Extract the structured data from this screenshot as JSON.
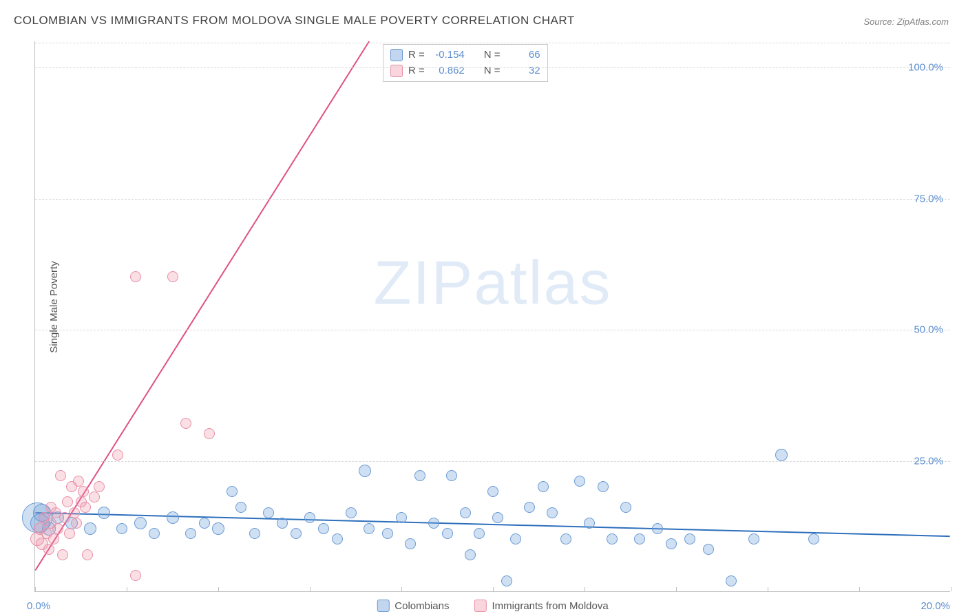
{
  "title": "COLOMBIAN VS IMMIGRANTS FROM MOLDOVA SINGLE MALE POVERTY CORRELATION CHART",
  "source": "Source: ZipAtlas.com",
  "ylabel": "Single Male Poverty",
  "watermark_a": "ZIP",
  "watermark_b": "atlas",
  "chart": {
    "type": "scatter",
    "background_color": "#ffffff",
    "grid_color": "#d8d8d8",
    "axis_color": "#c0c0c0",
    "tick_label_color": "#5b8ecf",
    "label_color": "#555555",
    "label_fontsize": 15,
    "tick_fontsize": 15,
    "title_fontsize": 17,
    "title_color": "#404040",
    "xlim": [
      0,
      20
    ],
    "ylim": [
      0,
      105
    ],
    "xticks": [
      0,
      2,
      4,
      6,
      8,
      10,
      12,
      14,
      16,
      18,
      20
    ],
    "xtick_labels": {
      "0": "0.0%",
      "20": "20.0%"
    },
    "yticks": [
      25,
      50,
      75,
      100
    ],
    "ytick_labels": [
      "25.0%",
      "50.0%",
      "75.0%",
      "100.0%"
    ],
    "point_base_radius": 8,
    "point_opacity": 0.35
  },
  "series": [
    {
      "name": "Colombians",
      "color_fill": "rgba(120,165,220,0.35)",
      "color_stroke": "#6a9ad4",
      "R": "-0.154",
      "N": "66",
      "trend": {
        "x1": 0,
        "y1": 15.0,
        "x2": 20,
        "y2": 10.5,
        "color": "#2d6fbc",
        "width": 2
      },
      "points": [
        {
          "x": 0.05,
          "y": 14,
          "r": 22
        },
        {
          "x": 0.1,
          "y": 13,
          "r": 14
        },
        {
          "x": 0.15,
          "y": 15,
          "r": 13
        },
        {
          "x": 0.3,
          "y": 12,
          "r": 10
        },
        {
          "x": 0.5,
          "y": 14,
          "r": 9
        },
        {
          "x": 0.8,
          "y": 13,
          "r": 9
        },
        {
          "x": 1.2,
          "y": 12,
          "r": 9
        },
        {
          "x": 1.5,
          "y": 15,
          "r": 9
        },
        {
          "x": 1.9,
          "y": 12,
          "r": 8
        },
        {
          "x": 2.3,
          "y": 13,
          "r": 9
        },
        {
          "x": 2.6,
          "y": 11,
          "r": 8
        },
        {
          "x": 3.0,
          "y": 14,
          "r": 9
        },
        {
          "x": 3.4,
          "y": 11,
          "r": 8
        },
        {
          "x": 3.7,
          "y": 13,
          "r": 8
        },
        {
          "x": 4.0,
          "y": 12,
          "r": 9
        },
        {
          "x": 4.3,
          "y": 19,
          "r": 8
        },
        {
          "x": 4.5,
          "y": 16,
          "r": 8
        },
        {
          "x": 4.8,
          "y": 11,
          "r": 8
        },
        {
          "x": 5.1,
          "y": 15,
          "r": 8
        },
        {
          "x": 5.4,
          "y": 13,
          "r": 8
        },
        {
          "x": 5.7,
          "y": 11,
          "r": 8
        },
        {
          "x": 6.0,
          "y": 14,
          "r": 8
        },
        {
          "x": 6.3,
          "y": 12,
          "r": 8
        },
        {
          "x": 6.6,
          "y": 10,
          "r": 8
        },
        {
          "x": 6.9,
          "y": 15,
          "r": 8
        },
        {
          "x": 7.2,
          "y": 23,
          "r": 9
        },
        {
          "x": 7.3,
          "y": 12,
          "r": 8
        },
        {
          "x": 7.7,
          "y": 11,
          "r": 8
        },
        {
          "x": 8.0,
          "y": 14,
          "r": 8
        },
        {
          "x": 8.2,
          "y": 9,
          "r": 8
        },
        {
          "x": 8.4,
          "y": 22,
          "r": 8
        },
        {
          "x": 8.7,
          "y": 13,
          "r": 8
        },
        {
          "x": 9.0,
          "y": 11,
          "r": 8
        },
        {
          "x": 9.1,
          "y": 22,
          "r": 8
        },
        {
          "x": 9.4,
          "y": 15,
          "r": 8
        },
        {
          "x": 9.5,
          "y": 7,
          "r": 8
        },
        {
          "x": 9.7,
          "y": 11,
          "r": 8
        },
        {
          "x": 10.0,
          "y": 19,
          "r": 8
        },
        {
          "x": 10.1,
          "y": 14,
          "r": 8
        },
        {
          "x": 10.3,
          "y": 2,
          "r": 8
        },
        {
          "x": 10.5,
          "y": 10,
          "r": 8
        },
        {
          "x": 10.8,
          "y": 16,
          "r": 8
        },
        {
          "x": 11.1,
          "y": 20,
          "r": 8
        },
        {
          "x": 11.3,
          "y": 15,
          "r": 8
        },
        {
          "x": 11.6,
          "y": 10,
          "r": 8
        },
        {
          "x": 11.9,
          "y": 21,
          "r": 8
        },
        {
          "x": 12.1,
          "y": 13,
          "r": 8
        },
        {
          "x": 12.4,
          "y": 20,
          "r": 8
        },
        {
          "x": 12.6,
          "y": 10,
          "r": 8
        },
        {
          "x": 12.9,
          "y": 16,
          "r": 8
        },
        {
          "x": 13.2,
          "y": 10,
          "r": 8
        },
        {
          "x": 13.6,
          "y": 12,
          "r": 8
        },
        {
          "x": 13.9,
          "y": 9,
          "r": 8
        },
        {
          "x": 14.3,
          "y": 10,
          "r": 8
        },
        {
          "x": 14.7,
          "y": 8,
          "r": 8
        },
        {
          "x": 15.2,
          "y": 2,
          "r": 8
        },
        {
          "x": 15.7,
          "y": 10,
          "r": 8
        },
        {
          "x": 16.3,
          "y": 26,
          "r": 9
        },
        {
          "x": 17.0,
          "y": 10,
          "r": 8
        }
      ]
    },
    {
      "name": "Immigrants from Moldova",
      "color_fill": "rgba(240,150,170,0.30)",
      "color_stroke": "#e890a8",
      "R": "0.862",
      "N": "32",
      "trend": {
        "x1": 0,
        "y1": 4,
        "x2": 7.3,
        "y2": 105,
        "color": "#e05085",
        "width": 2
      },
      "points": [
        {
          "x": 0.05,
          "y": 10,
          "r": 10
        },
        {
          "x": 0.1,
          "y": 12,
          "r": 9
        },
        {
          "x": 0.15,
          "y": 9,
          "r": 9
        },
        {
          "x": 0.2,
          "y": 14,
          "r": 8
        },
        {
          "x": 0.25,
          "y": 11,
          "r": 8
        },
        {
          "x": 0.3,
          "y": 8,
          "r": 8
        },
        {
          "x": 0.35,
          "y": 13,
          "r": 8
        },
        {
          "x": 0.35,
          "y": 16,
          "r": 8
        },
        {
          "x": 0.4,
          "y": 10,
          "r": 8
        },
        {
          "x": 0.45,
          "y": 15,
          "r": 8
        },
        {
          "x": 0.5,
          "y": 12,
          "r": 8
        },
        {
          "x": 0.55,
          "y": 22,
          "r": 8
        },
        {
          "x": 0.6,
          "y": 7,
          "r": 8
        },
        {
          "x": 0.65,
          "y": 14,
          "r": 8
        },
        {
          "x": 0.7,
          "y": 17,
          "r": 8
        },
        {
          "x": 0.75,
          "y": 11,
          "r": 8
        },
        {
          "x": 0.8,
          "y": 20,
          "r": 8
        },
        {
          "x": 0.85,
          "y": 15,
          "r": 8
        },
        {
          "x": 0.9,
          "y": 13,
          "r": 8
        },
        {
          "x": 0.95,
          "y": 21,
          "r": 8
        },
        {
          "x": 1.0,
          "y": 17,
          "r": 8
        },
        {
          "x": 1.05,
          "y": 19,
          "r": 8
        },
        {
          "x": 1.1,
          "y": 16,
          "r": 8
        },
        {
          "x": 1.15,
          "y": 7,
          "r": 8
        },
        {
          "x": 1.3,
          "y": 18,
          "r": 8
        },
        {
          "x": 1.4,
          "y": 20,
          "r": 8
        },
        {
          "x": 1.8,
          "y": 26,
          "r": 8
        },
        {
          "x": 2.2,
          "y": 3,
          "r": 8
        },
        {
          "x": 2.2,
          "y": 60,
          "r": 8
        },
        {
          "x": 3.0,
          "y": 60,
          "r": 8
        },
        {
          "x": 3.3,
          "y": 32,
          "r": 8
        },
        {
          "x": 3.8,
          "y": 30,
          "r": 8
        }
      ]
    }
  ],
  "legend": {
    "series1_label": "Colombians",
    "series2_label": "Immigrants from Moldova"
  },
  "stats_box": {
    "R_label": "R =",
    "N_label": "N ="
  }
}
